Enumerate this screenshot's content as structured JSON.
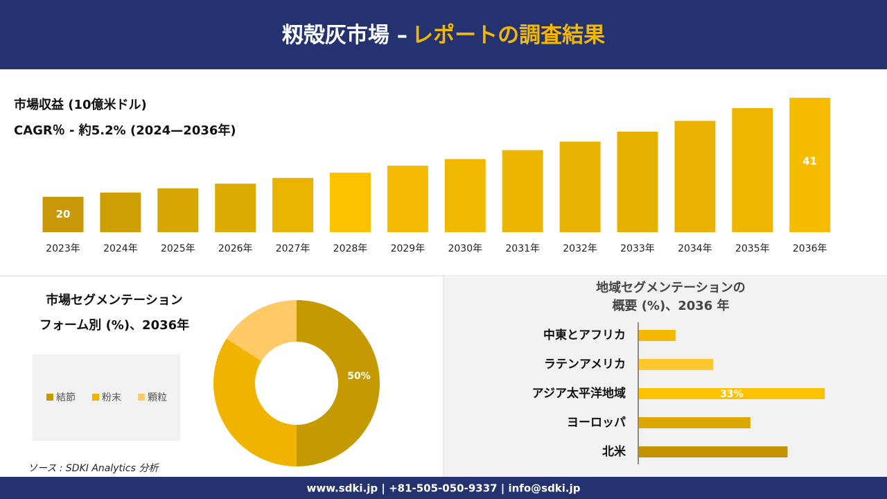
{
  "header": {
    "title_main": "籾殻灰市場 –",
    "title_accent": "レポートの調査結果"
  },
  "chart_data": [
    {
      "type": "bar",
      "title": "市場収益 (10億米ドル)",
      "subtitle": "CAGR％ - 約5.2% (2024—2036年)",
      "categories": [
        "2023年",
        "2024年",
        "2025年",
        "2026年",
        "2027年",
        "2028年",
        "2029年",
        "2030年",
        "2031年",
        "2032年",
        "2033年",
        "2034年",
        "2035年",
        "2036年"
      ],
      "values": [
        20,
        20.9,
        21.8,
        22.8,
        24.0,
        25.1,
        26.6,
        28.0,
        29.9,
        31.7,
        33.8,
        36.1,
        38.8,
        41
      ],
      "colors": [
        "#c8980a",
        "#cfa006",
        "#d6a604",
        "#ddac02",
        "#e8b400",
        "#fcc200",
        "#f5bb00",
        "#f0b800",
        "#ecb500",
        "#e8b200",
        "#e6b000",
        "#e9b200",
        "#eeb600",
        "#f5bc00"
      ],
      "ylim": [
        12.5,
        41
      ],
      "data_labels": "first-last"
    },
    {
      "type": "pie",
      "title": [
        "市場セグメンテーション",
        "フォーム別 (%)、2036年"
      ],
      "categories": [
        "結節",
        "粉末",
        "顆粒"
      ],
      "values": [
        50,
        34,
        16
      ],
      "value_labels": [
        "50%",
        null,
        null
      ],
      "colors": [
        "#c49a00",
        "#f0b400",
        "#ffc966"
      ]
    },
    {
      "type": "barh",
      "title": [
        "地域セグメンテーションの",
        "概要 (%)、2036 年"
      ],
      "categories": [
        "中東とアフリカ",
        "ラテンアメリカ",
        "アジア太平洋地域",
        "ヨーロッパ",
        "北米"
      ],
      "values": [
        6.5,
        13.2,
        33,
        19.8,
        26.4
      ],
      "value_labels": [
        null,
        null,
        "33%",
        null,
        null
      ],
      "colors": [
        "#f5b800",
        "#ffc72c",
        "#fcc200",
        "#dba700",
        "#c49100"
      ],
      "xlim": [
        0,
        40
      ]
    }
  ],
  "source": "ソース : SDKI Analytics 分析",
  "footer": "www.sdki.jp | +81-505-050-9337 | info@sdki.jp"
}
